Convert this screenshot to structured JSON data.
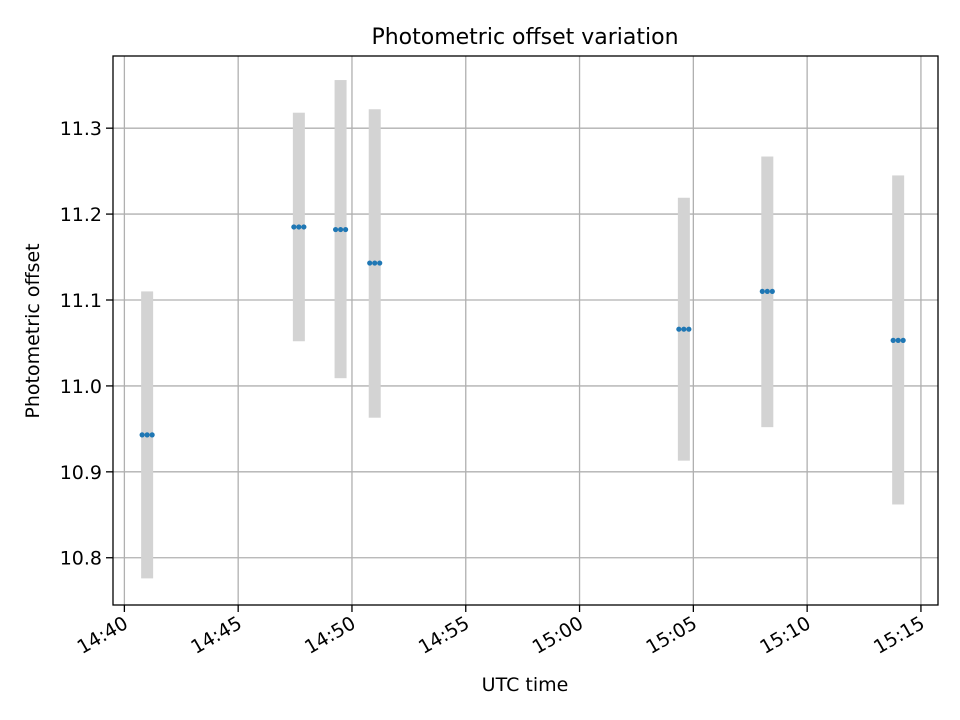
{
  "chart_data": {
    "type": "scatter",
    "title": "Photometric offset variation",
    "xlabel": "UTC time",
    "ylabel": "Photometric offset",
    "xlim": [
      "14:39:30",
      "15:15:45"
    ],
    "ylim": [
      10.745,
      11.384
    ],
    "xticks": [
      "14:40",
      "14:45",
      "14:50",
      "14:55",
      "15:00",
      "15:05",
      "15:10",
      "15:15"
    ],
    "yticks": [
      "10.8",
      "10.9",
      "11.0",
      "11.1",
      "11.2",
      "11.3"
    ],
    "grid": true,
    "series": [
      {
        "marker_color": "#1f77b4",
        "errorbar_color": "#d3d3d3",
        "points": [
          {
            "time": "14:41:00",
            "offsets": [
              10.943,
              10.943,
              10.943
            ],
            "low": 10.776,
            "high": 11.11
          },
          {
            "time": "14:47:40",
            "offsets": [
              11.185,
              11.185,
              11.185
            ],
            "low": 11.052,
            "high": 11.318
          },
          {
            "time": "14:49:30",
            "offsets": [
              11.182,
              11.182,
              11.182
            ],
            "low": 11.009,
            "high": 11.356
          },
          {
            "time": "14:51:00",
            "offsets": [
              11.143,
              11.143,
              11.143
            ],
            "low": 10.963,
            "high": 11.322
          },
          {
            "time": "15:04:35",
            "offsets": [
              11.066,
              11.066,
              11.066
            ],
            "low": 10.913,
            "high": 11.219
          },
          {
            "time": "15:08:15",
            "offsets": [
              11.11,
              11.11,
              11.11
            ],
            "low": 10.952,
            "high": 11.267
          },
          {
            "time": "15:14:00",
            "offsets": [
              11.053,
              11.053,
              11.053
            ],
            "low": 10.862,
            "high": 11.245
          }
        ]
      }
    ]
  }
}
